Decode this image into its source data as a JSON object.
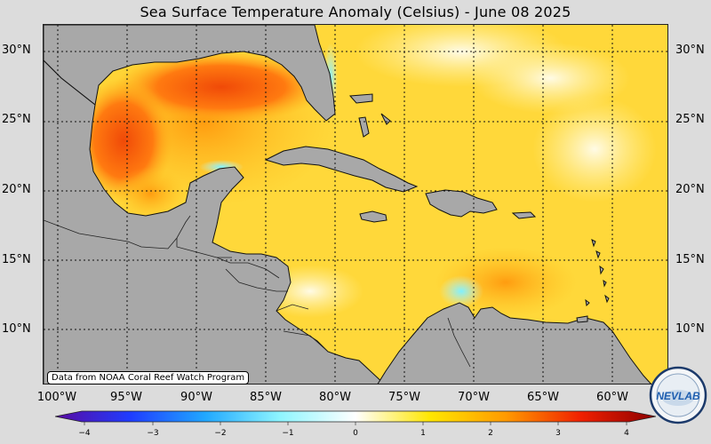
{
  "title": "Sea Surface Temperature Anomaly (Celsius) - June 08 2025",
  "credit": "Data from NOAA Coral Reef Watch Program",
  "lat_labels": [
    "30°N",
    "25°N",
    "20°N",
    "15°N",
    "10°N"
  ],
  "lon_labels": [
    "100°W",
    "95°W",
    "90°W",
    "85°W",
    "80°W",
    "75°W",
    "70°W",
    "65°W",
    "60°W"
  ],
  "colorbar": {
    "ticks": [
      "−4",
      "−3",
      "−2",
      "−1",
      "0",
      "1",
      "2",
      "3",
      "4"
    ],
    "min": -4,
    "max": 4,
    "colors": [
      "#5a0aa0",
      "#1f3cff",
      "#21a8ff",
      "#8ff6ff",
      "#ffffff",
      "#ffe600",
      "#ff9a00",
      "#f02000",
      "#8b0000"
    ]
  },
  "map": {
    "land_color": "#a8a8a8",
    "grid_style": "dotted",
    "lat_range": [
      6,
      32
    ],
    "lon_range": [
      -102,
      -57
    ]
  },
  "logo_text": "NEVLAB",
  "icons": [
    "nevlab-logo-icon"
  ]
}
